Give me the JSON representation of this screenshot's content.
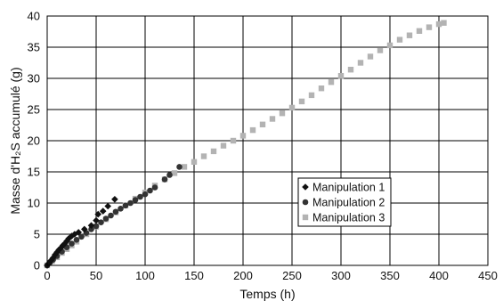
{
  "chart_data": {
    "type": "scatter",
    "title": "",
    "xlabel": "Temps (h)",
    "ylabel": "Masse d'H₂S accumulé (g)",
    "xlim": [
      0,
      450
    ],
    "ylim": [
      0,
      40
    ],
    "xticks": [
      "0",
      "50",
      "100",
      "150",
      "200",
      "250",
      "300",
      "350",
      "400",
      "450"
    ],
    "yticks": [
      "0",
      "5",
      "10",
      "15",
      "20",
      "25",
      "30",
      "35",
      "40"
    ],
    "grid": true,
    "legend_position": "right-center",
    "series": [
      {
        "name": "Manipulation 1",
        "marker": "diamond",
        "color": "#111111",
        "points": [
          [
            0,
            0
          ],
          [
            2,
            0.4
          ],
          [
            4,
            0.8
          ],
          [
            6,
            1.2
          ],
          [
            8,
            1.7
          ],
          [
            10,
            2.1
          ],
          [
            12,
            2.5
          ],
          [
            14,
            2.8
          ],
          [
            16,
            3.2
          ],
          [
            18,
            3.5
          ],
          [
            20,
            3.9
          ],
          [
            22,
            4.3
          ],
          [
            25,
            4.7
          ],
          [
            28,
            5.0
          ],
          [
            32,
            5.3
          ],
          [
            38,
            5.8
          ],
          [
            45,
            6.4
          ],
          [
            50,
            7.2
          ],
          [
            52,
            8.2
          ],
          [
            57,
            8.7
          ],
          [
            62,
            9.5
          ],
          [
            69,
            10.6
          ]
        ]
      },
      {
        "name": "Manipulation 2",
        "marker": "circle",
        "color": "#333333",
        "points": [
          [
            0,
            0
          ],
          [
            3,
            0.5
          ],
          [
            6,
            0.9
          ],
          [
            10,
            1.5
          ],
          [
            15,
            2.2
          ],
          [
            20,
            2.9
          ],
          [
            25,
            3.5
          ],
          [
            30,
            4.1
          ],
          [
            35,
            4.6
          ],
          [
            40,
            5.2
          ],
          [
            45,
            5.8
          ],
          [
            50,
            6.3
          ],
          [
            55,
            6.9
          ],
          [
            60,
            7.5
          ],
          [
            65,
            8.0
          ],
          [
            70,
            8.6
          ],
          [
            75,
            9.1
          ],
          [
            80,
            9.6
          ],
          [
            85,
            10.0
          ],
          [
            90,
            10.5
          ],
          [
            95,
            11.0
          ],
          [
            100,
            11.4
          ],
          [
            105,
            12.0
          ],
          [
            110,
            12.5
          ],
          [
            120,
            13.8
          ],
          [
            125,
            14.5
          ],
          [
            135,
            15.8
          ]
        ]
      },
      {
        "name": "Manipulation 3",
        "marker": "square",
        "color": "#b3b3b3",
        "points": [
          [
            0,
            0
          ],
          [
            5,
            0.7
          ],
          [
            10,
            1.3
          ],
          [
            15,
            2.0
          ],
          [
            20,
            2.6
          ],
          [
            25,
            3.2
          ],
          [
            30,
            3.8
          ],
          [
            40,
            5.0
          ],
          [
            50,
            6.2
          ],
          [
            60,
            7.4
          ],
          [
            70,
            8.5
          ],
          [
            80,
            9.6
          ],
          [
            90,
            10.7
          ],
          [
            100,
            11.7
          ],
          [
            110,
            12.8
          ],
          [
            120,
            13.8
          ],
          [
            130,
            14.8
          ],
          [
            140,
            15.8
          ],
          [
            150,
            16.6
          ],
          [
            160,
            17.5
          ],
          [
            170,
            18.3
          ],
          [
            180,
            19.2
          ],
          [
            190,
            20.0
          ],
          [
            200,
            20.8
          ],
          [
            210,
            21.7
          ],
          [
            220,
            22.6
          ],
          [
            230,
            23.5
          ],
          [
            240,
            24.4
          ],
          [
            250,
            25.3
          ],
          [
            260,
            26.3
          ],
          [
            270,
            27.3
          ],
          [
            280,
            28.4
          ],
          [
            290,
            29.4
          ],
          [
            300,
            30.4
          ],
          [
            310,
            31.4
          ],
          [
            320,
            32.5
          ],
          [
            330,
            33.5
          ],
          [
            340,
            34.5
          ],
          [
            350,
            35.3
          ],
          [
            360,
            36.2
          ],
          [
            370,
            36.9
          ],
          [
            380,
            37.6
          ],
          [
            390,
            38.2
          ],
          [
            400,
            38.7
          ],
          [
            405,
            38.9
          ]
        ]
      }
    ]
  }
}
